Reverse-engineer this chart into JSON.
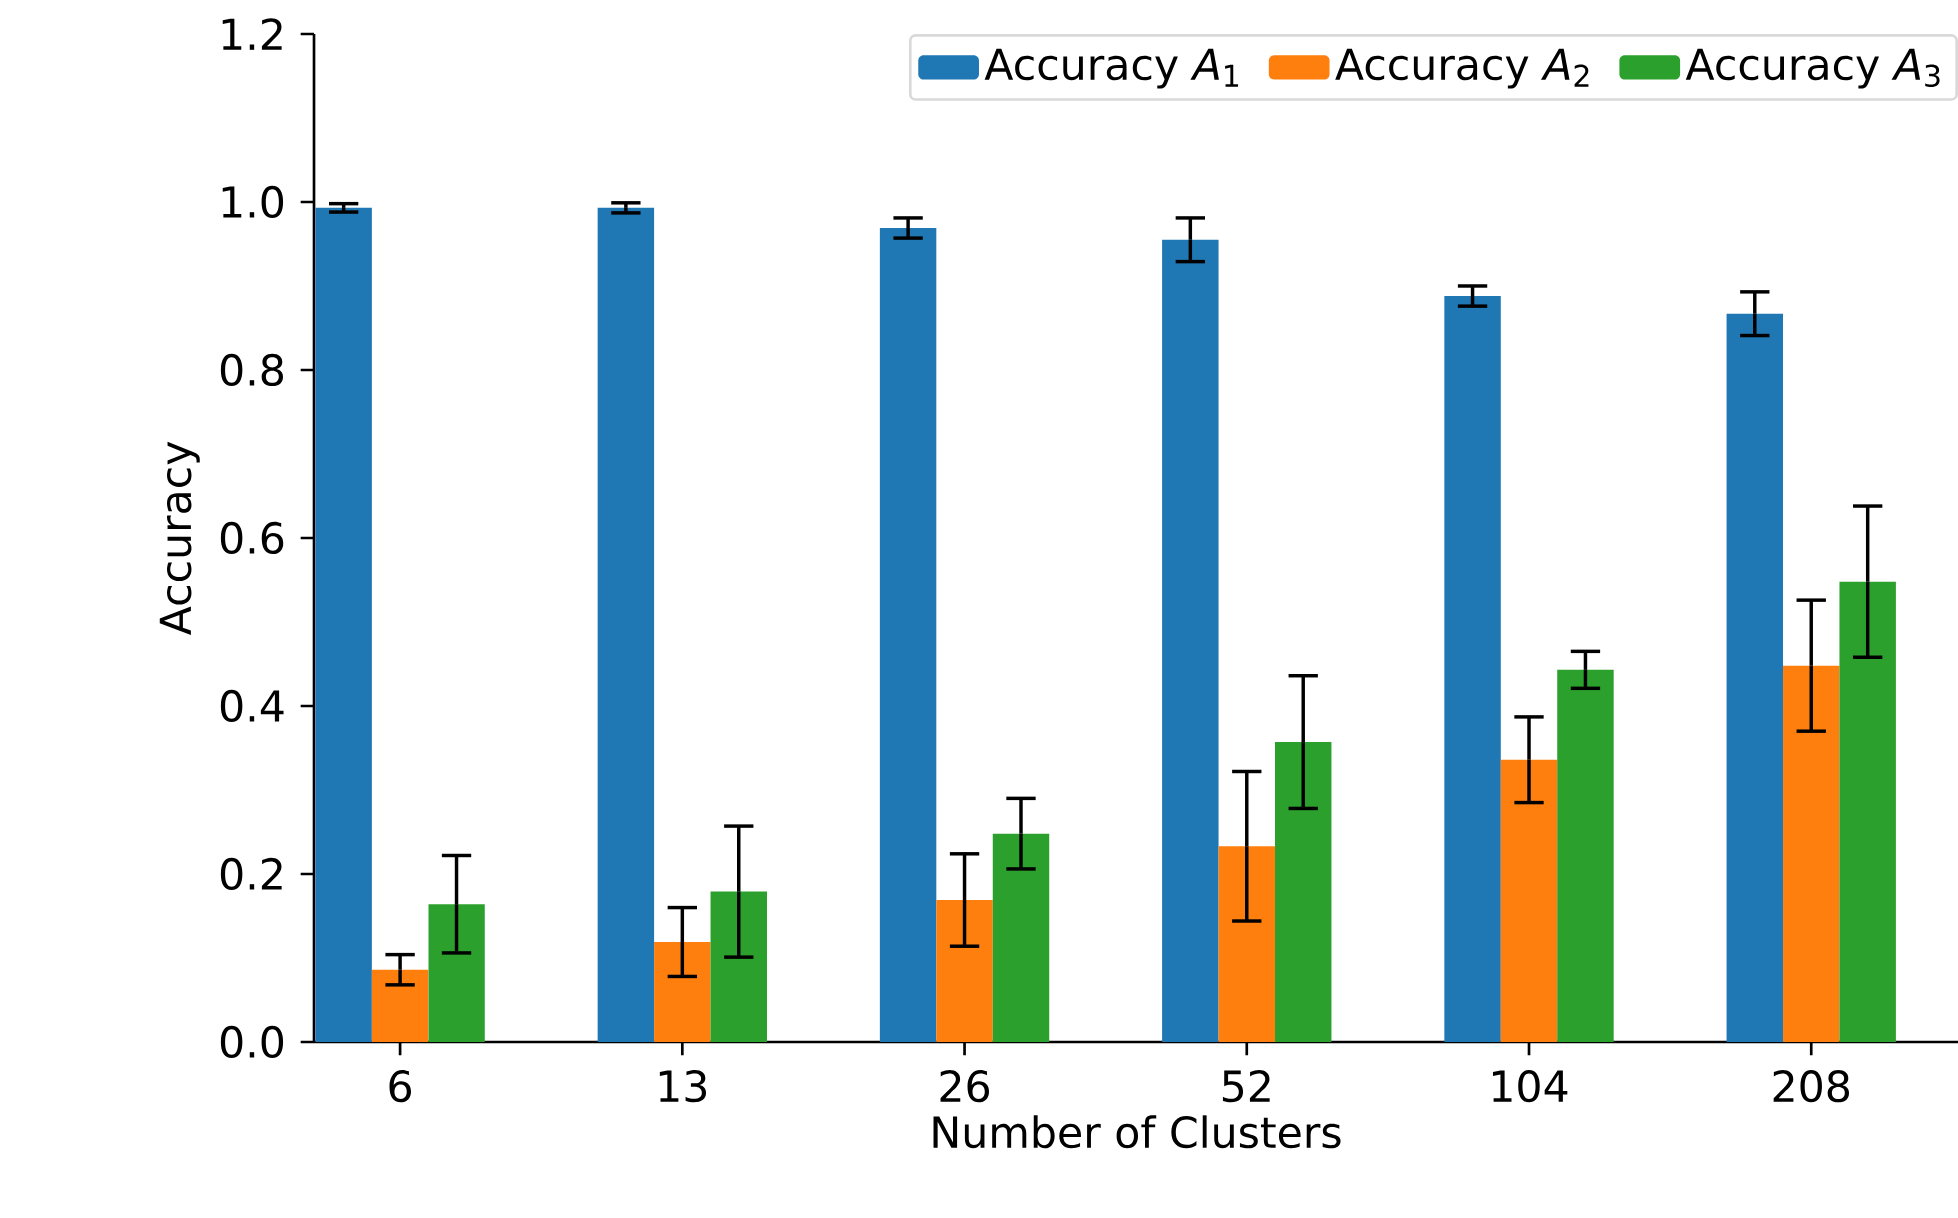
{
  "chart_data": {
    "type": "bar",
    "xlabel": "Number of Clusters",
    "ylabel": "Accuracy",
    "categories": [
      "6",
      "13",
      "26",
      "52",
      "104",
      "208"
    ],
    "series": [
      {
        "name": "Accuracy *A*$_{1}$",
        "color": "#1f77b4",
        "values": [
          0.993,
          0.993,
          0.969,
          0.955,
          0.888,
          0.867
        ],
        "errors": [
          0.005,
          0.006,
          0.012,
          0.026,
          0.012,
          0.026
        ]
      },
      {
        "name": "Accuracy *A*$_{2}$",
        "color": "#ff7f0e",
        "values": [
          0.086,
          0.119,
          0.169,
          0.233,
          0.336,
          0.448
        ],
        "errors": [
          0.018,
          0.041,
          0.055,
          0.089,
          0.051,
          0.078
        ]
      },
      {
        "name": "Accuracy *A*$_{3}$",
        "color": "#2ca02c",
        "values": [
          0.164,
          0.179,
          0.248,
          0.357,
          0.443,
          0.548
        ],
        "errors": [
          0.058,
          0.078,
          0.042,
          0.079,
          0.022,
          0.09
        ]
      }
    ],
    "ylim": [
      0,
      1.2
    ],
    "yticks": [
      {
        "value": 0,
        "label": "0.0"
      },
      {
        "value": 0.2,
        "label": "0.2"
      },
      {
        "value": 0.4,
        "label": "0.4"
      },
      {
        "value": 0.6,
        "label": "0.6"
      },
      {
        "value": 0.8,
        "label": "0.8"
      },
      {
        "value": 1.0,
        "label": "1.0"
      },
      {
        "value": 1.2,
        "label": "1.2"
      }
    ],
    "legend": "top right"
  }
}
